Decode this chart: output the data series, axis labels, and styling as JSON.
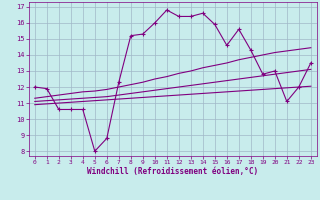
{
  "title": "",
  "xlabel": "Windchill (Refroidissement éolien,°C)",
  "bg_color": "#c8ecec",
  "grid_color": "#a0b8c8",
  "line_color": "#800080",
  "xlim": [
    -0.5,
    23.5
  ],
  "ylim": [
    7.7,
    17.3
  ],
  "xticks": [
    0,
    1,
    2,
    3,
    4,
    5,
    6,
    7,
    8,
    9,
    10,
    11,
    12,
    13,
    14,
    15,
    16,
    17,
    18,
    19,
    20,
    21,
    22,
    23
  ],
  "yticks": [
    8,
    9,
    10,
    11,
    12,
    13,
    14,
    15,
    16,
    17
  ],
  "x_data": [
    0,
    1,
    2,
    3,
    4,
    5,
    6,
    7,
    8,
    9,
    10,
    11,
    12,
    13,
    14,
    15,
    16,
    17,
    18,
    19,
    20,
    21,
    22,
    23
  ],
  "y_main": [
    12.0,
    11.9,
    10.6,
    10.6,
    10.6,
    8.0,
    8.8,
    12.3,
    15.2,
    15.3,
    16.0,
    16.8,
    16.4,
    16.4,
    16.6,
    15.9,
    14.6,
    15.6,
    14.3,
    12.8,
    13.0,
    11.1,
    12.0,
    13.5
  ],
  "y_line1": [
    10.9,
    10.95,
    11.0,
    11.05,
    11.1,
    11.15,
    11.2,
    11.25,
    11.3,
    11.35,
    11.4,
    11.45,
    11.5,
    11.55,
    11.6,
    11.65,
    11.7,
    11.75,
    11.8,
    11.85,
    11.9,
    11.95,
    12.0,
    12.05
  ],
  "y_line2": [
    11.1,
    11.15,
    11.2,
    11.25,
    11.3,
    11.35,
    11.4,
    11.5,
    11.6,
    11.7,
    11.8,
    11.9,
    12.0,
    12.1,
    12.2,
    12.3,
    12.4,
    12.5,
    12.6,
    12.7,
    12.8,
    12.9,
    13.0,
    13.1
  ],
  "y_line3": [
    11.3,
    11.4,
    11.5,
    11.6,
    11.7,
    11.75,
    11.85,
    12.0,
    12.15,
    12.3,
    12.5,
    12.65,
    12.85,
    13.0,
    13.2,
    13.35,
    13.5,
    13.7,
    13.85,
    14.0,
    14.15,
    14.25,
    14.35,
    14.45
  ]
}
